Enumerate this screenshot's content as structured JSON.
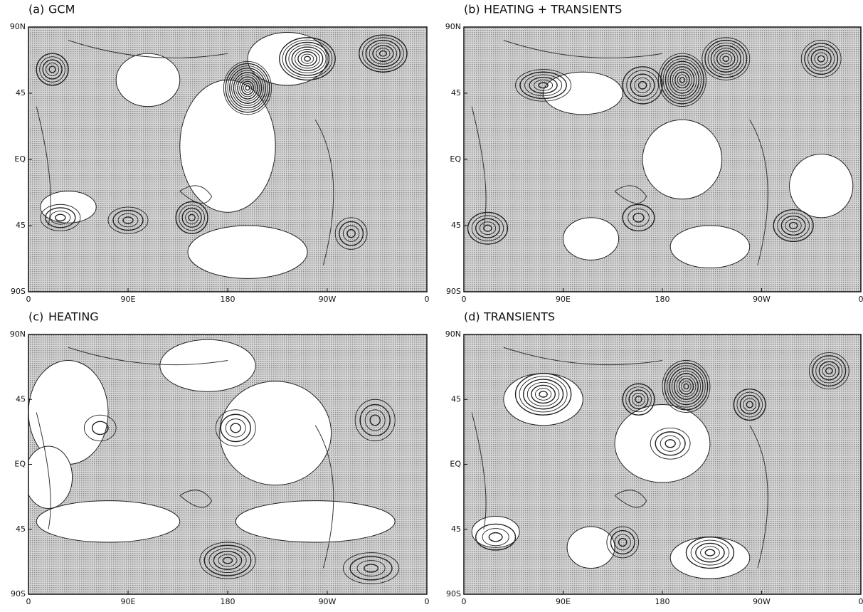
{
  "panels": [
    {
      "label": "(a)",
      "title": "GCM",
      "y_labels": [
        "90N",
        "45",
        "EQ",
        "45",
        "90S"
      ],
      "x_labels": [
        "0",
        "90E",
        "180",
        "90W",
        "0"
      ]
    },
    {
      "label": "(b)",
      "title": "HEATING + TRANSIENTS",
      "y_labels": [
        "90N",
        "45",
        "EQ",
        "45",
        "90S"
      ],
      "x_labels": [
        "0",
        "90E",
        "180",
        "90W",
        "0"
      ]
    },
    {
      "label": "(c)",
      "title": "HEATING",
      "y_labels": [
        "90N",
        "45",
        "EQ",
        "45",
        "90S"
      ],
      "x_labels": [
        "0",
        "90E",
        "180",
        "90W",
        "0"
      ]
    },
    {
      "label": "(d)",
      "title": "TRANSIENTS",
      "y_labels": [
        "90N",
        "45",
        "EQ",
        "45",
        "90S"
      ],
      "x_labels": [
        "0",
        "90E",
        "180",
        "90W",
        "0"
      ]
    }
  ]
}
